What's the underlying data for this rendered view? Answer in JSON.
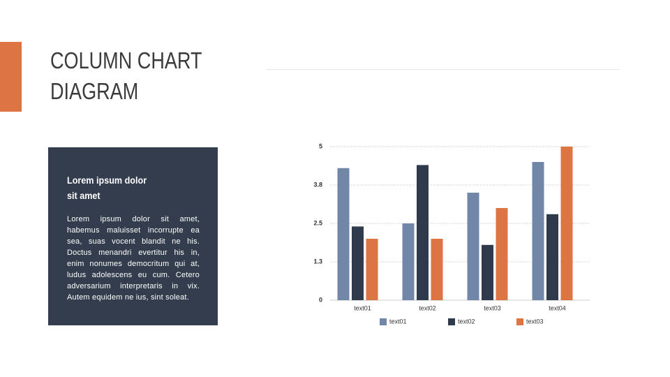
{
  "slide": {
    "title_lines": [
      "COLUMN CHART",
      "DIAGRAM"
    ],
    "sidebar": {
      "heading_lines": [
        "Lorem ipsum dolor",
        "sit amet"
      ],
      "body": "Lorem ipsum dolor sit amet, habemus maluisset incorrupte ea sea, suas vocent blandit ne his. Doctus menandri evertitur his in, enim nonumes democritum qui at, ludus adolescens eu cum. Cetero adversarium interpretaris in vix. Autem equidem ne ius, sint soleat."
    }
  },
  "chart_data": {
    "type": "bar",
    "categories": [
      "text01",
      "text02",
      "text03",
      "text04"
    ],
    "series": [
      {
        "name": "text01",
        "color": "#7287a8",
        "values": [
          4.3,
          2.5,
          3.5,
          4.5
        ]
      },
      {
        "name": "text02",
        "color": "#2f3a4c",
        "values": [
          2.4,
          4.4,
          1.8,
          2.8
        ]
      },
      {
        "name": "text03",
        "color": "#dc7443",
        "values": [
          2.0,
          2.0,
          3.0,
          5.0
        ]
      }
    ],
    "ylim": [
      0,
      5
    ],
    "yticks": [
      0,
      {
        "value": 1.25,
        "label": "1.3"
      },
      2.5,
      {
        "value": 3.75,
        "label": "3.8"
      },
      5
    ],
    "grid": true,
    "legend": "bottom"
  }
}
